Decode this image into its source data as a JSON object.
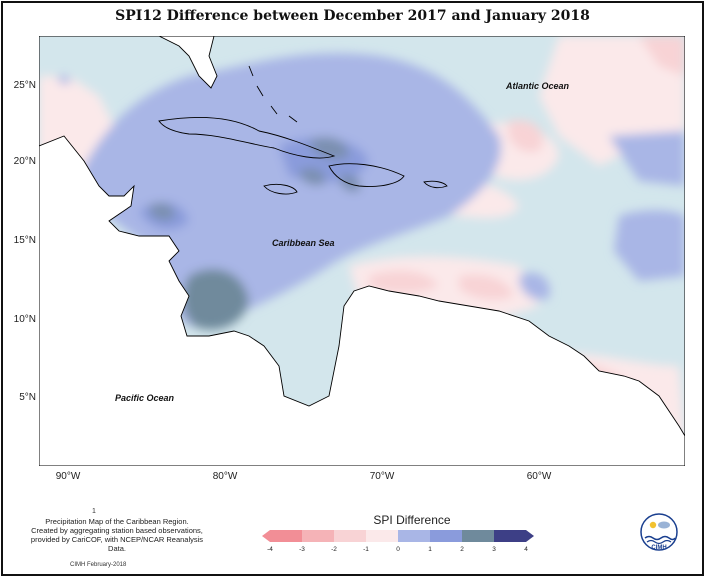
{
  "title": "SPI12 Difference between December 2017 and January 2018",
  "axes": {
    "lat_labels": [
      "25°N",
      "20°N",
      "15°N",
      "10°N",
      "5°N"
    ],
    "lon_labels": [
      "90°W",
      "80°W",
      "70°W",
      "60°W"
    ]
  },
  "labels": {
    "atlantic": "Atlantic Ocean",
    "caribbean": "Caribbean Sea",
    "pacific": "Pacific Ocean"
  },
  "mark": "1",
  "caption": [
    "Precipitation Map of the Caribbean Region.",
    "Created by aggregating station based observations,",
    "provided by CariCOF, with NCEP/NCAR Reanalysis Data."
  ],
  "credit": "CIMH February-2018",
  "legend": {
    "title": "SPI Difference",
    "ticks": [
      "-4",
      "-3",
      "-2",
      "-1",
      "0",
      "1",
      "2",
      "3",
      "4"
    ],
    "colors": [
      "#f28e96",
      "#f5b3b7",
      "#f8d3d5",
      "#fbe9ea",
      "#d3e6ec",
      "#a9b6e6",
      "#8a9bdc",
      "#6f8a9c",
      "#3d3f86"
    ]
  },
  "logo_text": "CIMH"
}
